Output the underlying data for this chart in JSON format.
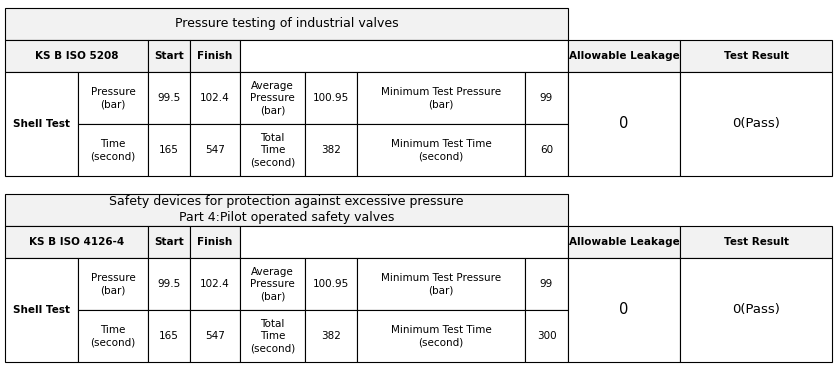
{
  "table1_title": "Pressure testing of industrial valves",
  "table1_std": "KS B ISO 5208",
  "table2_title": "Safety devices for protection against excessive pressure\nPart 4:Pilot operated safety valves",
  "table2_std": "KS B ISO 4126-4",
  "start_label": "Start",
  "finish_label": "Finish",
  "allowable_leakage_label": "Allowable Leakage",
  "test_result_label": "Test Result",
  "shell_test_label": "Shell Test",
  "pressure_bar_label": "Pressure\n(bar)",
  "time_second_label": "Time\n(second)",
  "avg_pressure_label": "Average\nPressure\n(bar)",
  "total_time_label": "Total\nTime\n(second)",
  "min_test_pressure_label": "Minimum Test Pressure\n(bar)",
  "min_test_time_label": "Minimum Test Time\n(second)",
  "start_pressure": "99.5",
  "finish_pressure": "102.4",
  "avg_pressure": "100.95",
  "min_pressure_val": "99",
  "start_time": "165",
  "finish_time": "547",
  "total_time_val": "382",
  "min_time_val1": "60",
  "min_time_val2": "300",
  "allowable_leakage_val": "0",
  "test_result_val": "0(Pass)",
  "bg_color": "#ffffff",
  "header_bg": "#f2f2f2",
  "border_color": "#000000",
  "text_color": "#000000",
  "font_size": 7.5,
  "title_font_size": 9.0,
  "fig_width": 8.37,
  "fig_height": 3.91,
  "dpi": 100
}
